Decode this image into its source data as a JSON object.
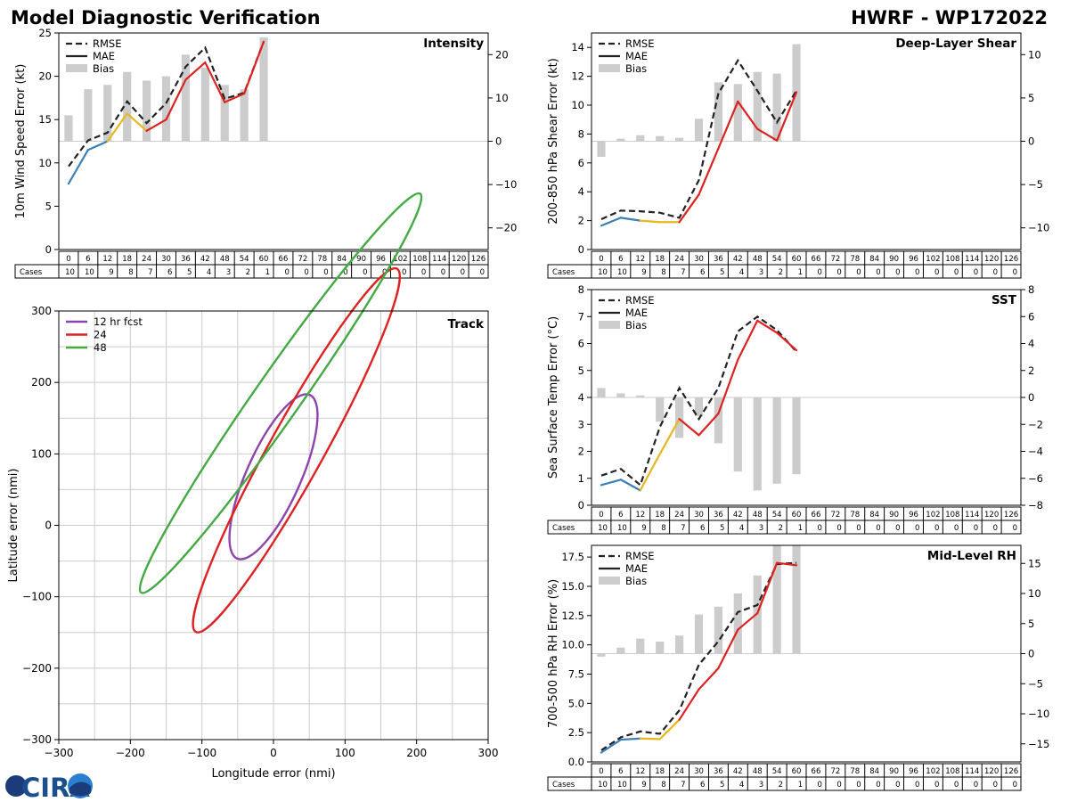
{
  "header": {
    "title": "Model Diagnostic Verification",
    "storm": "HWRF - WP172022"
  },
  "colors": {
    "rmse": "#222222",
    "bias": "#cccccc",
    "grid": "#cccccc",
    "seg1": "#3a7fb7",
    "seg2": "#e6b71e",
    "seg3": "#dd2222",
    "fcst12": "#8e44ad",
    "fcst24": "#dd2222",
    "fcst48": "#44aa44"
  },
  "legend": {
    "rmse": "RMSE",
    "mae": "MAE",
    "bias": "Bias"
  },
  "cases_label": "Cases",
  "hours": [
    0,
    6,
    12,
    18,
    24,
    30,
    36,
    42,
    48,
    54,
    60,
    66,
    72,
    78,
    84,
    90,
    96,
    102,
    108,
    114,
    120,
    126
  ],
  "cases": [
    10,
    10,
    9,
    8,
    7,
    6,
    5,
    4,
    3,
    2,
    1,
    0,
    0,
    0,
    0,
    0,
    0,
    0,
    0,
    0,
    0,
    0
  ],
  "logo": "CIRA",
  "chart_data": [
    {
      "type": "line",
      "title": "Intensity",
      "ylabel": "10m Wind Speed Error (kt)",
      "ylim": [
        0,
        25
      ],
      "yticks": [
        0,
        5,
        10,
        15,
        20,
        25
      ],
      "ytick_labels": [
        "0",
        "5",
        "10",
        "15",
        "20",
        "25"
      ],
      "y2lim": [
        -25,
        25
      ],
      "y2ticks": [
        -20,
        -10,
        0,
        10,
        20
      ],
      "y2tick_labels": [
        "−20",
        "−10",
        "0",
        "10",
        "20"
      ],
      "hours": [
        0,
        6,
        12,
        18,
        24,
        30,
        36,
        42,
        48,
        54,
        60
      ],
      "rmse": [
        9.6,
        12.6,
        13.5,
        17.1,
        14.6,
        16.9,
        21.1,
        23.3,
        17.4,
        18.1,
        24.0
      ],
      "mae": [
        7.6,
        11.5,
        12.5,
        15.7,
        13.7,
        15.0,
        19.6,
        21.6,
        17.0,
        18.0,
        24.0
      ],
      "bias": [
        6,
        12,
        13,
        16,
        14,
        15,
        20,
        17,
        13,
        12,
        24
      ]
    },
    {
      "type": "line",
      "title": "Deep-Layer Shear",
      "ylabel": "200-850 hPa Shear Error (kt)",
      "ylim": [
        0,
        15
      ],
      "yticks": [
        0,
        2,
        4,
        6,
        8,
        10,
        12,
        14
      ],
      "ytick_labels": [
        "0",
        "2",
        "4",
        "6",
        "8",
        "10",
        "12",
        "14"
      ],
      "y2lim": [
        -12.5,
        12.5
      ],
      "y2ticks": [
        -10,
        -5,
        0,
        5,
        10
      ],
      "y2tick_labels": [
        "−10",
        "−5",
        "0",
        "5",
        "10"
      ],
      "hours": [
        0,
        6,
        12,
        18,
        24,
        30,
        36,
        42,
        48,
        54,
        60
      ],
      "rmse": [
        2.1,
        2.7,
        2.65,
        2.55,
        2.2,
        4.8,
        10.8,
        13.1,
        11.0,
        8.8,
        11.0
      ],
      "mae": [
        1.65,
        2.2,
        2.0,
        1.9,
        1.9,
        3.8,
        7.0,
        10.25,
        8.35,
        7.55,
        10.9
      ],
      "bias": [
        -1.8,
        0.3,
        0.7,
        0.6,
        0.4,
        2.6,
        6.8,
        6.6,
        8.0,
        7.8,
        11.2
      ]
    },
    {
      "type": "line",
      "title": "SST",
      "ylabel": "Sea Surface Temp Error (°C)",
      "ylim": [
        0,
        8
      ],
      "yticks": [
        0,
        1,
        2,
        3,
        4,
        5,
        6,
        7,
        8
      ],
      "ytick_labels": [
        "0",
        "1",
        "2",
        "3",
        "4",
        "5",
        "6",
        "7",
        "8"
      ],
      "y2lim": [
        -8,
        8
      ],
      "y2ticks": [
        -8,
        -6,
        -4,
        -2,
        0,
        2,
        4,
        6,
        8
      ],
      "y2tick_labels": [
        "−8",
        "−6",
        "−4",
        "−2",
        "0",
        "2",
        "4",
        "6",
        "8"
      ],
      "hours": [
        0,
        6,
        12,
        18,
        24,
        30,
        36,
        42,
        48,
        54,
        60
      ],
      "rmse": [
        1.1,
        1.35,
        0.75,
        2.9,
        4.35,
        3.2,
        4.35,
        6.45,
        7.0,
        6.5,
        5.7
      ],
      "mae": [
        0.75,
        0.95,
        0.55,
        1.9,
        3.2,
        2.6,
        3.4,
        5.4,
        6.85,
        6.4,
        5.75
      ],
      "bias": [
        0.7,
        0.3,
        0.15,
        -1.8,
        -3.0,
        -1.4,
        -3.4,
        -5.5,
        -6.9,
        -6.4,
        -5.7
      ]
    },
    {
      "type": "line",
      "title": "Mid-Level RH",
      "ylabel": "700-500 hPa RH Error (%)",
      "ylim": [
        0,
        18.5
      ],
      "yticks": [
        0,
        2.5,
        5,
        7.5,
        10,
        12.5,
        15,
        17.5
      ],
      "ytick_labels": [
        "0.0",
        "2.5",
        "5.0",
        "7.5",
        "10.0",
        "12.5",
        "15.0",
        "17.5"
      ],
      "y2lim": [
        -18,
        18
      ],
      "y2ticks": [
        -15,
        -10,
        -5,
        0,
        5,
        10,
        15
      ],
      "y2tick_labels": [
        "−15",
        "−10",
        "−5",
        "0",
        "5",
        "10",
        "15"
      ],
      "hours": [
        0,
        6,
        12,
        18,
        24,
        30,
        36,
        42,
        48,
        54,
        60
      ],
      "rmse": [
        1.0,
        2.1,
        2.6,
        2.4,
        4.4,
        8.3,
        10.3,
        12.8,
        13.4,
        16.9,
        17.0
      ],
      "mae": [
        0.8,
        1.9,
        2.0,
        1.95,
        3.6,
        6.2,
        8.0,
        11.3,
        12.7,
        17.0,
        16.8
      ],
      "bias": [
        -0.5,
        1.0,
        2.5,
        2.0,
        3.0,
        6.5,
        7.8,
        10.0,
        13.0,
        18.0,
        18.0
      ]
    },
    {
      "type": "ellipse",
      "title": "Track",
      "xlabel": "Longitude error (nmi)",
      "ylabel": "Latitude error (nmi)",
      "xlim": [
        -300,
        300
      ],
      "ylim": [
        -300,
        300
      ],
      "xticks": [
        -300,
        -200,
        -100,
        0,
        100,
        200,
        300
      ],
      "xtick_labels": [
        "−300",
        "−200",
        "−100",
        "0",
        "100",
        "200",
        "300"
      ],
      "yticks": [
        -300,
        -200,
        -100,
        0,
        100,
        200,
        300
      ],
      "ytick_labels": [
        "−300",
        "−200",
        "−100",
        "0",
        "100",
        "200",
        "300"
      ],
      "ellipses": [
        {
          "label": "12 hr fcst",
          "cx": 0,
          "cy": 68,
          "a": 125,
          "b": 38,
          "angle_deg": 66
        },
        {
          "label": "24",
          "cx": 32,
          "cy": 105,
          "a": 290,
          "b": 38,
          "angle_deg": 61
        },
        {
          "label": "48",
          "cx": 10,
          "cy": 185,
          "a": 340,
          "b": 32,
          "angle_deg": 55
        }
      ]
    }
  ]
}
